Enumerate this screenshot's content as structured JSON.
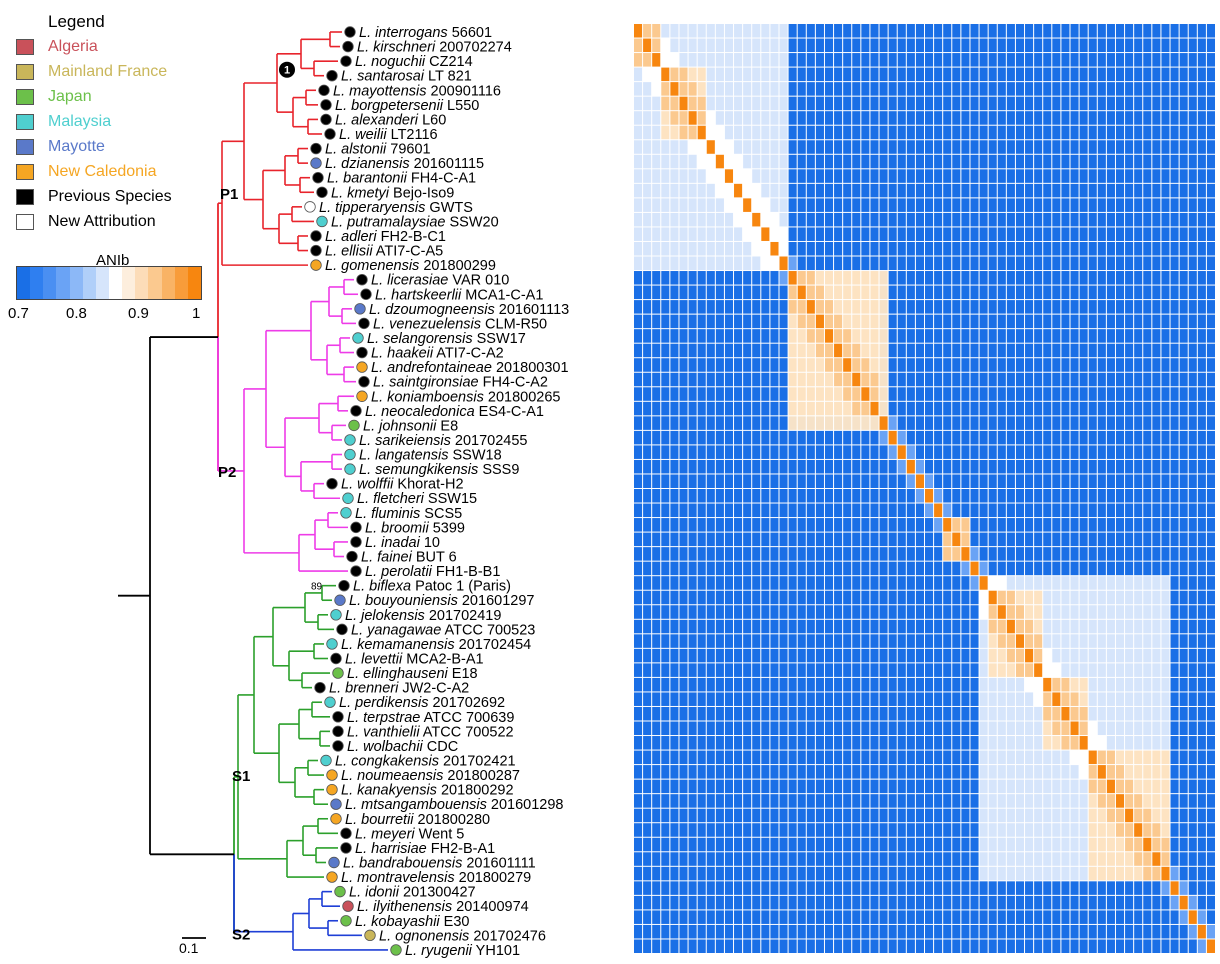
{
  "legend": {
    "title": "Legend",
    "items": [
      {
        "label": "Algeria",
        "color": "#c9515a",
        "text_color": "#c9515a"
      },
      {
        "label": "Mainland France",
        "color": "#c9b65a",
        "text_color": "#c9b65a"
      },
      {
        "label": "Japan",
        "color": "#6cc04a",
        "text_color": "#6cc04a"
      },
      {
        "label": "Malaysia",
        "color": "#4fcfcf",
        "text_color": "#4fcfcf"
      },
      {
        "label": "Mayotte",
        "color": "#5a79c9",
        "text_color": "#5a79c9"
      },
      {
        "label": "New Caledonia",
        "color": "#f5a623",
        "text_color": "#f5a623"
      },
      {
        "label": "Previous Species",
        "color": "#000000",
        "text_color": "#000000"
      },
      {
        "label": "New Attribution",
        "color": "#ffffff",
        "text_color": "#000000"
      }
    ]
  },
  "colorbar": {
    "title": "ANIb",
    "ticks": [
      "0.7",
      "0.8",
      "0.9",
      "1"
    ],
    "colors": [
      "#1a6fe6",
      "#2f7ff0",
      "#4a8ff2",
      "#6aa3f5",
      "#8cb8f7",
      "#b0cff9",
      "#d6e5fb",
      "#ffffff",
      "#fdeedd",
      "#fcdcb8",
      "#fbc98f",
      "#f9b365",
      "#f89c3a",
      "#f7860f"
    ]
  },
  "tree": {
    "clade_labels": [
      "P1",
      "P2",
      "S1",
      "S2"
    ],
    "clade_colors": {
      "P1": "#e8242c",
      "P2": "#ee3ce8",
      "S1": "#2ca02c",
      "S2": "#1f3fd6",
      "root": "#000000"
    },
    "bootstrap_labels": [
      "89",
      "1"
    ],
    "scale_label": "0.1"
  },
  "taxa": [
    {
      "genus": "L.",
      "species": "interrogans",
      "strain": "56601",
      "clade": "P1",
      "color": "#000000"
    },
    {
      "genus": "L.",
      "species": "kirschneri",
      "strain": "200702274",
      "clade": "P1",
      "color": "#000000"
    },
    {
      "genus": "L.",
      "species": "noguchii",
      "strain": "CZ214",
      "clade": "P1",
      "color": "#000000"
    },
    {
      "genus": "L.",
      "species": "santarosai",
      "strain": "LT 821",
      "clade": "P1",
      "color": "#000000"
    },
    {
      "genus": "L.",
      "species": "mayottensis",
      "strain": "200901116",
      "clade": "P1",
      "color": "#000000"
    },
    {
      "genus": "L.",
      "species": "borgpetersenii",
      "strain": "L550",
      "clade": "P1",
      "color": "#000000"
    },
    {
      "genus": "L.",
      "species": "alexanderi",
      "strain": "L60",
      "clade": "P1",
      "color": "#000000"
    },
    {
      "genus": "L.",
      "species": "weilii",
      "strain": "LT2116",
      "clade": "P1",
      "color": "#000000"
    },
    {
      "genus": "L.",
      "species": "alstonii",
      "strain": "79601",
      "clade": "P1",
      "color": "#000000"
    },
    {
      "genus": "L.",
      "species": "dzianensis",
      "strain": "201601115",
      "clade": "P1",
      "color": "#5a79c9"
    },
    {
      "genus": "L.",
      "species": "barantonii",
      "strain": "FH4-C-A1",
      "clade": "P1",
      "color": "#000000"
    },
    {
      "genus": "L.",
      "species": "kmetyi",
      "strain": "Bejo-Iso9",
      "clade": "P1",
      "color": "#000000"
    },
    {
      "genus": "L.",
      "species": "tipperaryensis",
      "strain": "GWTS",
      "clade": "P1",
      "color": "#ffffff"
    },
    {
      "genus": "L.",
      "species": "putramalaysiae",
      "strain": "SSW20",
      "clade": "P1",
      "color": "#4fcfcf"
    },
    {
      "genus": "L.",
      "species": "adleri",
      "strain": "FH2-B-C1",
      "clade": "P1",
      "color": "#000000"
    },
    {
      "genus": "L.",
      "species": "ellisii",
      "strain": "ATI7-C-A5",
      "clade": "P1",
      "color": "#000000"
    },
    {
      "genus": "L.",
      "species": "gomenensis",
      "strain": "201800299",
      "clade": "P1",
      "color": "#f5a623"
    },
    {
      "genus": "L.",
      "species": "licerasiae",
      "strain": "VAR 010",
      "clade": "P2",
      "color": "#000000"
    },
    {
      "genus": "L.",
      "species": "hartskeerlii",
      "strain": "MCA1-C-A1",
      "clade": "P2",
      "color": "#000000"
    },
    {
      "genus": "L.",
      "species": "dzoumogneensis",
      "strain": "201601113",
      "clade": "P2",
      "color": "#5a79c9"
    },
    {
      "genus": "L.",
      "species": "venezuelensis",
      "strain": "CLM-R50",
      "clade": "P2",
      "color": "#000000"
    },
    {
      "genus": "L.",
      "species": "selangorensis",
      "strain": "SSW17",
      "clade": "P2",
      "color": "#4fcfcf"
    },
    {
      "genus": "L.",
      "species": "haakeii",
      "strain": "ATI7-C-A2",
      "clade": "P2",
      "color": "#000000"
    },
    {
      "genus": "L.",
      "species": "andrefontaineae",
      "strain": "201800301",
      "clade": "P2",
      "color": "#f5a623"
    },
    {
      "genus": "L.",
      "species": "saintgironsiae",
      "strain": "FH4-C-A2",
      "clade": "P2",
      "color": "#000000"
    },
    {
      "genus": "L.",
      "species": "koniamboensis",
      "strain": "201800265",
      "clade": "P2",
      "color": "#f5a623"
    },
    {
      "genus": "L.",
      "species": "neocaledonica",
      "strain": "ES4-C-A1",
      "clade": "P2",
      "color": "#000000"
    },
    {
      "genus": "L.",
      "species": "johnsonii",
      "strain": "E8",
      "clade": "P2",
      "color": "#6cc04a"
    },
    {
      "genus": "L.",
      "species": "sarikeiensis",
      "strain": "201702455",
      "clade": "P2",
      "color": "#4fcfcf"
    },
    {
      "genus": "L.",
      "species": "langatensis",
      "strain": "SSW18",
      "clade": "P2",
      "color": "#4fcfcf"
    },
    {
      "genus": "L.",
      "species": "semungkikensis",
      "strain": "SSS9",
      "clade": "P2",
      "color": "#4fcfcf"
    },
    {
      "genus": "L.",
      "species": "wolffii",
      "strain": "Khorat-H2",
      "clade": "P2",
      "color": "#000000"
    },
    {
      "genus": "L.",
      "species": "fletcheri",
      "strain": "SSW15",
      "clade": "P2",
      "color": "#4fcfcf"
    },
    {
      "genus": "L.",
      "species": "fluminis",
      "strain": "SCS5",
      "clade": "P2",
      "color": "#4fcfcf"
    },
    {
      "genus": "L.",
      "species": "broomii",
      "strain": "5399",
      "clade": "P2",
      "color": "#000000"
    },
    {
      "genus": "L.",
      "species": "inadai",
      "strain": "10",
      "clade": "P2",
      "color": "#000000"
    },
    {
      "genus": "L.",
      "species": "fainei",
      "strain": "BUT 6",
      "clade": "P2",
      "color": "#000000"
    },
    {
      "genus": "L.",
      "species": "perolatii",
      "strain": "FH1-B-B1",
      "clade": "P2",
      "color": "#000000"
    },
    {
      "genus": "L.",
      "species": "biflexa",
      "strain": "Patoc 1 (Paris)",
      "clade": "S1",
      "color": "#000000"
    },
    {
      "genus": "L.",
      "species": "bouyouniensis",
      "strain": "201601297",
      "clade": "S1",
      "color": "#5a79c9"
    },
    {
      "genus": "L.",
      "species": "jelokensis",
      "strain": "201702419",
      "clade": "S1",
      "color": "#4fcfcf"
    },
    {
      "genus": "L.",
      "species": "yanagawae",
      "strain": "ATCC 700523",
      "clade": "S1",
      "color": "#000000"
    },
    {
      "genus": "L.",
      "species": "kemamanensis",
      "strain": "201702454",
      "clade": "S1",
      "color": "#4fcfcf"
    },
    {
      "genus": "L.",
      "species": "levettii",
      "strain": "MCA2-B-A1",
      "clade": "S1",
      "color": "#000000"
    },
    {
      "genus": "L.",
      "species": "ellinghauseni",
      "strain": "E18",
      "clade": "S1",
      "color": "#6cc04a"
    },
    {
      "genus": "L.",
      "species": "brenneri",
      "strain": "JW2-C-A2",
      "clade": "S1",
      "color": "#000000"
    },
    {
      "genus": "L.",
      "species": "perdikensis",
      "strain": "201702692",
      "clade": "S1",
      "color": "#4fcfcf"
    },
    {
      "genus": "L.",
      "species": "terpstrae",
      "strain": "ATCC 700639",
      "clade": "S1",
      "color": "#000000"
    },
    {
      "genus": "L.",
      "species": "vanthielii",
      "strain": "ATCC 700522",
      "clade": "S1",
      "color": "#000000"
    },
    {
      "genus": "L.",
      "species": "wolbachii",
      "strain": "CDC",
      "clade": "S1",
      "color": "#000000"
    },
    {
      "genus": "L.",
      "species": "congkakensis",
      "strain": "201702421",
      "clade": "S1",
      "color": "#4fcfcf"
    },
    {
      "genus": "L.",
      "species": "noumeaensis",
      "strain": "201800287",
      "clade": "S1",
      "color": "#f5a623"
    },
    {
      "genus": "L.",
      "species": "kanakyensis",
      "strain": "201800292",
      "clade": "S1",
      "color": "#f5a623"
    },
    {
      "genus": "L.",
      "species": "mtsangambouensis",
      "strain": "201601298",
      "clade": "S1",
      "color": "#5a79c9"
    },
    {
      "genus": "L.",
      "species": "bourretii",
      "strain": "201800280",
      "clade": "S1",
      "color": "#f5a623"
    },
    {
      "genus": "L.",
      "species": "meyeri",
      "strain": "Went 5",
      "clade": "S1",
      "color": "#000000"
    },
    {
      "genus": "L.",
      "species": "harrisiae",
      "strain": "FH2-B-A1",
      "clade": "S1",
      "color": "#000000"
    },
    {
      "genus": "L.",
      "species": "bandrabouensis",
      "strain": "201601111",
      "clade": "S1",
      "color": "#5a79c9"
    },
    {
      "genus": "L.",
      "species": "montravelensis",
      "strain": "201800279",
      "clade": "S1",
      "color": "#f5a623"
    },
    {
      "genus": "L.",
      "species": "idonii",
      "strain": "201300427",
      "clade": "S2",
      "color": "#6cc04a"
    },
    {
      "genus": "L.",
      "species": "ilyithenensis",
      "strain": "201400974",
      "clade": "S2",
      "color": "#c9515a"
    },
    {
      "genus": "L.",
      "species": "kobayashii",
      "strain": "E30",
      "clade": "S2",
      "color": "#6cc04a"
    },
    {
      "genus": "L.",
      "species": "ognonensis",
      "strain": "201702476",
      "clade": "S2",
      "color": "#c9b65a"
    },
    {
      "genus": "L.",
      "species": "ryugenii",
      "strain": "YH101",
      "clade": "S2",
      "color": "#6cc04a"
    }
  ],
  "heatmap": {
    "blocks": [
      {
        "start": 0,
        "end": 16,
        "level": "pale"
      },
      {
        "start": 17,
        "end": 27,
        "level": "light-orange"
      },
      {
        "start": 38,
        "end": 58,
        "level": "pale"
      }
    ],
    "diagonal_color": "#f7860f",
    "background_color": "#1a6fe6"
  }
}
